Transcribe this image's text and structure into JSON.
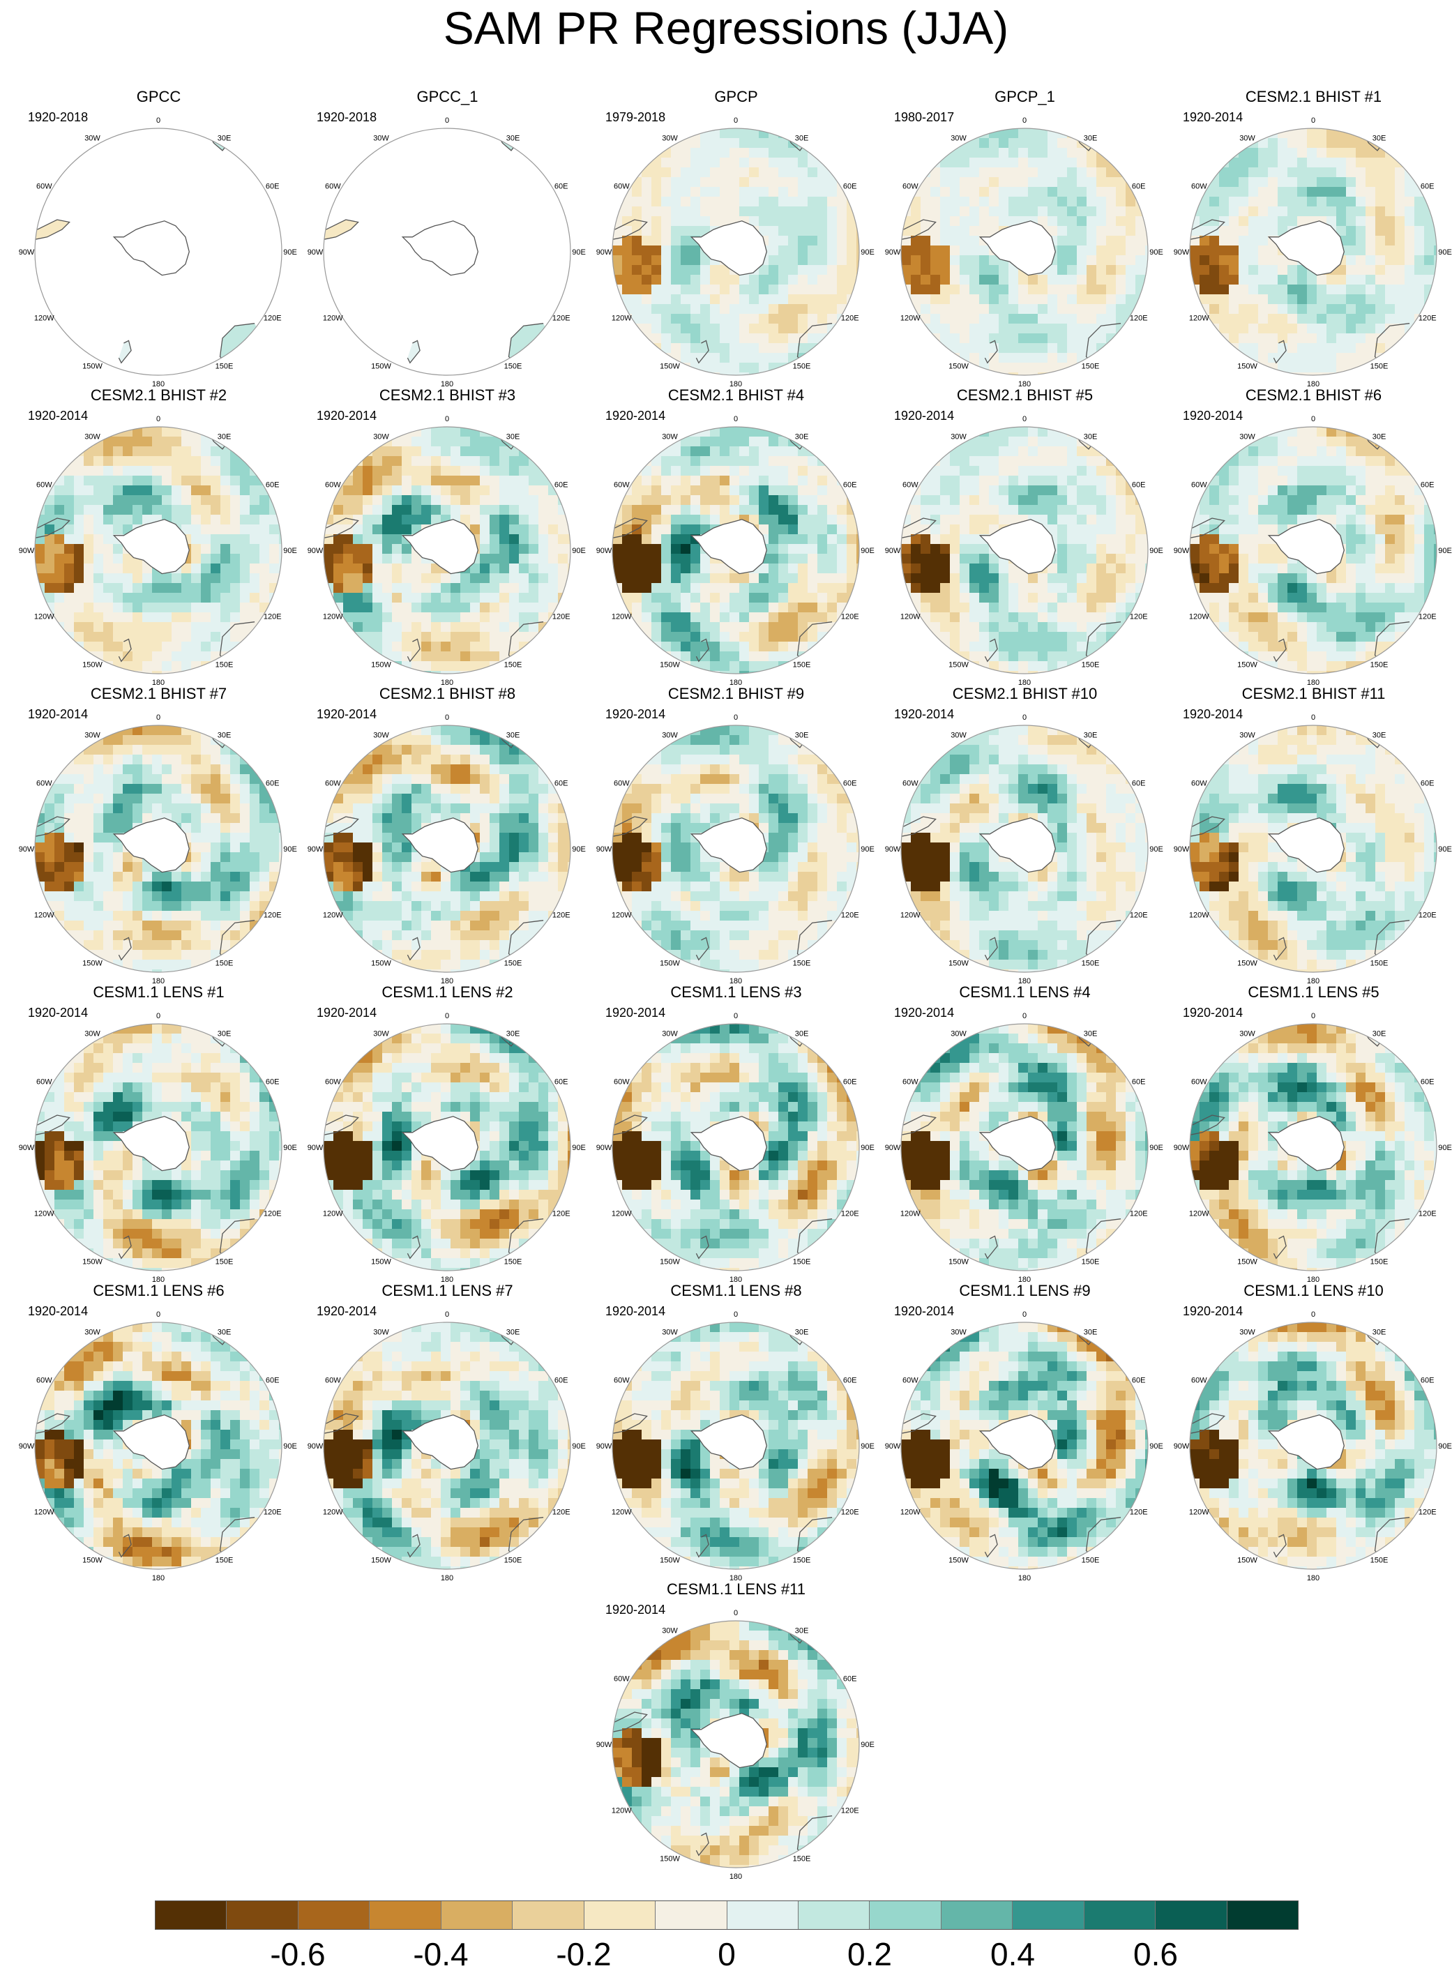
{
  "title": "SAM PR Regressions (JJA)",
  "longitude_labels": [
    "0",
    "30E",
    "60E",
    "90E",
    "120E",
    "150E",
    "180",
    "150W",
    "120W",
    "90W",
    "60W",
    "30W"
  ],
  "colors": {
    "land": "#ffffff",
    "coastline": "#555555",
    "frame": "#999999"
  },
  "chart_data": {
    "type": "heatmap",
    "projection": "south-polar-stereographic",
    "panels": [
      {
        "title": "GPCC",
        "period": "1920-2018",
        "coverage": "land-only",
        "anomaly_strength": 0.0
      },
      {
        "title": "GPCC_1",
        "period": "1920-2018",
        "coverage": "land-only",
        "anomaly_strength": 0.0
      },
      {
        "title": "GPCP",
        "period": "1979-2018",
        "coverage": "global",
        "anomaly_strength": 0.3
      },
      {
        "title": "GPCP_1",
        "period": "1980-2017",
        "coverage": "global",
        "anomaly_strength": 0.3
      },
      {
        "title": "CESM2.1 BHIST #1",
        "period": "1920-2014",
        "coverage": "global",
        "anomaly_strength": 0.35
      },
      {
        "title": "CESM2.1 BHIST #2",
        "period": "1920-2014",
        "coverage": "global",
        "anomaly_strength": 0.45
      },
      {
        "title": "CESM2.1 BHIST #3",
        "period": "1920-2014",
        "coverage": "global",
        "anomaly_strength": 0.55
      },
      {
        "title": "CESM2.1 BHIST #4",
        "period": "1920-2014",
        "coverage": "global",
        "anomaly_strength": 0.6
      },
      {
        "title": "CESM2.1 BHIST #5",
        "period": "1920-2014",
        "coverage": "global",
        "anomaly_strength": 0.4
      },
      {
        "title": "CESM2.1 BHIST #6",
        "period": "1920-2014",
        "coverage": "global",
        "anomaly_strength": 0.45
      },
      {
        "title": "CESM2.1 BHIST #7",
        "period": "1920-2014",
        "coverage": "global",
        "anomaly_strength": 0.5
      },
      {
        "title": "CESM2.1 BHIST #8",
        "period": "1920-2014",
        "coverage": "global",
        "anomaly_strength": 0.55
      },
      {
        "title": "CESM2.1 BHIST #9",
        "period": "1920-2014",
        "coverage": "global",
        "anomaly_strength": 0.45
      },
      {
        "title": "CESM2.1 BHIST #10",
        "period": "1920-2014",
        "coverage": "global",
        "anomaly_strength": 0.45
      },
      {
        "title": "CESM2.1 BHIST #11",
        "period": "1920-2014",
        "coverage": "global",
        "anomaly_strength": 0.45
      },
      {
        "title": "CESM1.1 LENS #1",
        "period": "1920-2014",
        "coverage": "global",
        "anomaly_strength": 0.6
      },
      {
        "title": "CESM1.1 LENS #2",
        "period": "1920-2014",
        "coverage": "global",
        "anomaly_strength": 0.65
      },
      {
        "title": "CESM1.1 LENS #3",
        "period": "1920-2014",
        "coverage": "global",
        "anomaly_strength": 0.6
      },
      {
        "title": "CESM1.1 LENS #4",
        "period": "1920-2014",
        "coverage": "global",
        "anomaly_strength": 0.6
      },
      {
        "title": "CESM1.1 LENS #5",
        "period": "1920-2014",
        "coverage": "global",
        "anomaly_strength": 0.6
      },
      {
        "title": "CESM1.1 LENS #6",
        "period": "1920-2014",
        "coverage": "global",
        "anomaly_strength": 0.7
      },
      {
        "title": "CESM1.1 LENS #7",
        "period": "1920-2014",
        "coverage": "global",
        "anomaly_strength": 0.6
      },
      {
        "title": "CESM1.1 LENS #8",
        "period": "1920-2014",
        "coverage": "global",
        "anomaly_strength": 0.6
      },
      {
        "title": "CESM1.1 LENS #9",
        "period": "1920-2014",
        "coverage": "global",
        "anomaly_strength": 0.7
      },
      {
        "title": "CESM1.1 LENS #10",
        "period": "1920-2014",
        "coverage": "global",
        "anomaly_strength": 0.6
      },
      {
        "title": "CESM1.1 LENS #11",
        "period": "1920-2014",
        "coverage": "global",
        "anomaly_strength": 0.65
      }
    ],
    "colorbar": {
      "colors": [
        "#543005",
        "#7f4a0f",
        "#a8661c",
        "#c78630",
        "#d9ae62",
        "#ead09a",
        "#f6e8c3",
        "#f5f0e4",
        "#e3f2f1",
        "#c2e8e0",
        "#97d7cc",
        "#64b6a9",
        "#35978f",
        "#1b7b70",
        "#0a5f54",
        "#013c30"
      ],
      "levels": [
        -0.7,
        -0.6,
        -0.5,
        -0.4,
        -0.3,
        -0.2,
        -0.1,
        0,
        0.1,
        0.2,
        0.3,
        0.4,
        0.5,
        0.6,
        0.7
      ],
      "tick_labels": [
        "-0.6",
        "-0.4",
        "-0.2",
        "0",
        "0.2",
        "0.4",
        "0.6"
      ],
      "tick_values": [
        -0.6,
        -0.4,
        -0.2,
        0,
        0.2,
        0.4,
        0.6
      ],
      "range": [
        -0.8,
        0.8
      ]
    }
  }
}
